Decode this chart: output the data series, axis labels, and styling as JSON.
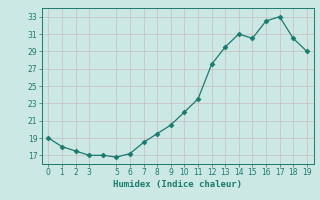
{
  "xlabel": "Humidex (Indice chaleur)",
  "x": [
    0,
    1,
    2,
    3,
    4,
    5,
    6,
    7,
    8,
    9,
    10,
    11,
    12,
    13,
    14,
    15,
    16,
    17,
    18,
    19
  ],
  "y": [
    19,
    18,
    17.5,
    17,
    17,
    16.8,
    17.2,
    18.5,
    19.5,
    20.5,
    22,
    23.5,
    27.5,
    29.5,
    31,
    30.5,
    32.5,
    33,
    30.5,
    29
  ],
  "xlim": [
    -0.5,
    19.5
  ],
  "ylim": [
    16,
    34
  ],
  "yticks": [
    17,
    19,
    21,
    23,
    25,
    27,
    29,
    31,
    33
  ],
  "xticks": [
    0,
    1,
    2,
    3,
    5,
    6,
    7,
    8,
    9,
    10,
    11,
    12,
    13,
    14,
    15,
    16,
    17,
    18,
    19
  ],
  "line_color": "#1a7a6e",
  "marker": "D",
  "marker_size": 2.5,
  "bg_color": "#cce8e4",
  "grid_color_major": "#c8b8b8",
  "grid_color_minor": "#ddd0d0",
  "tick_color": "#1a7a6e",
  "label_color": "#1a7a6e",
  "font_name": "monospace"
}
